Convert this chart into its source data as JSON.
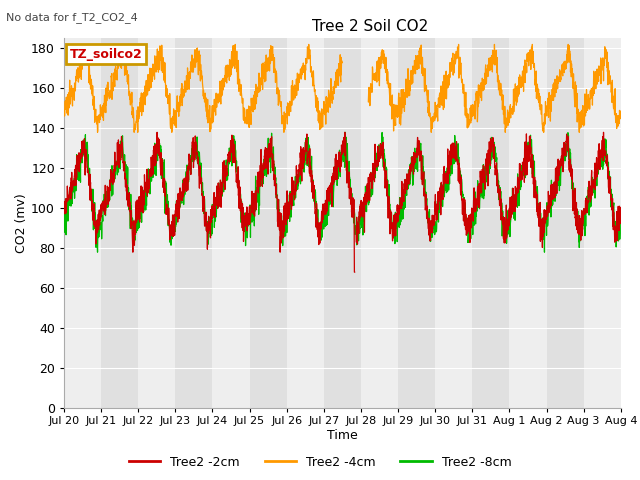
{
  "title": "Tree 2 Soil CO2",
  "subtitle": "No data for f_T2_CO2_4",
  "xlabel": "Time",
  "ylabel": "CO2 (mv)",
  "ylim": [
    0,
    185
  ],
  "yticks": [
    0,
    20,
    40,
    60,
    80,
    100,
    120,
    140,
    160,
    180
  ],
  "date_labels": [
    "Jul 20",
    "Jul 21",
    "Jul 22",
    "Jul 23",
    "Jul 24",
    "Jul 25",
    "Jul 26",
    "Jul 27",
    "Jul 28",
    "Jul 29",
    "Jul 30",
    "Jul 31",
    "Aug 1",
    "Aug 2",
    "Aug 3",
    "Aug 4"
  ],
  "legend_label": "TZ_soilco2",
  "series_labels": [
    "Tree2 -2cm",
    "Tree2 -4cm",
    "Tree2 -8cm"
  ],
  "series_colors": [
    "#cc0000",
    "#ff9900",
    "#00bb00"
  ],
  "background_color": "#ffffff",
  "plot_bg_light": "#eeeeee",
  "plot_bg_dark": "#e0e0e0",
  "num_days": 15,
  "points_per_day": 144,
  "orange_base": 160,
  "orange_amp": 18,
  "orange_min": 140,
  "red_base": 110,
  "red_amp": 22,
  "green_base": 109,
  "green_amp": 23
}
